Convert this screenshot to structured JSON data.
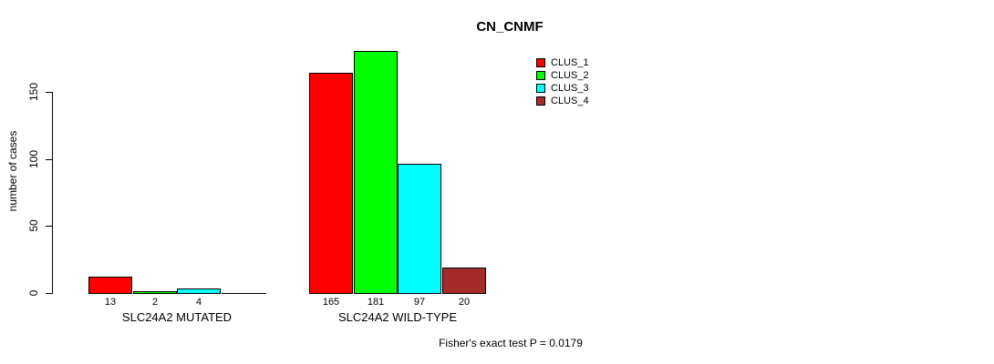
{
  "chart_data": {
    "type": "bar",
    "title": "CN_CNMF",
    "ylabel": "number of cases",
    "xlabel": "",
    "yticks": [
      0,
      50,
      100,
      150
    ],
    "ylim": [
      0,
      150
    ],
    "grid": false,
    "legend_position": "top-right",
    "categories": [
      "SLC24A2 MUTATED",
      "SLC24A2 WILD-TYPE"
    ],
    "series": [
      {
        "name": "CLUS_1",
        "color": "#FF0000",
        "values": [
          13,
          165
        ],
        "labels": [
          "13",
          "165"
        ]
      },
      {
        "name": "CLUS_2",
        "color": "#00FF00",
        "values": [
          2,
          181
        ],
        "labels": [
          "2",
          "181"
        ]
      },
      {
        "name": "CLUS_3",
        "color": "#00FFFF",
        "values": [
          4,
          97
        ],
        "labels": [
          "4",
          "97"
        ]
      },
      {
        "name": "CLUS_4",
        "color": "#A52A2A",
        "values": [
          0,
          20
        ],
        "labels": [
          "",
          "20"
        ]
      }
    ],
    "bar_border_color": "#000000",
    "annotation": "Fisher's exact test P = 0.0179"
  }
}
